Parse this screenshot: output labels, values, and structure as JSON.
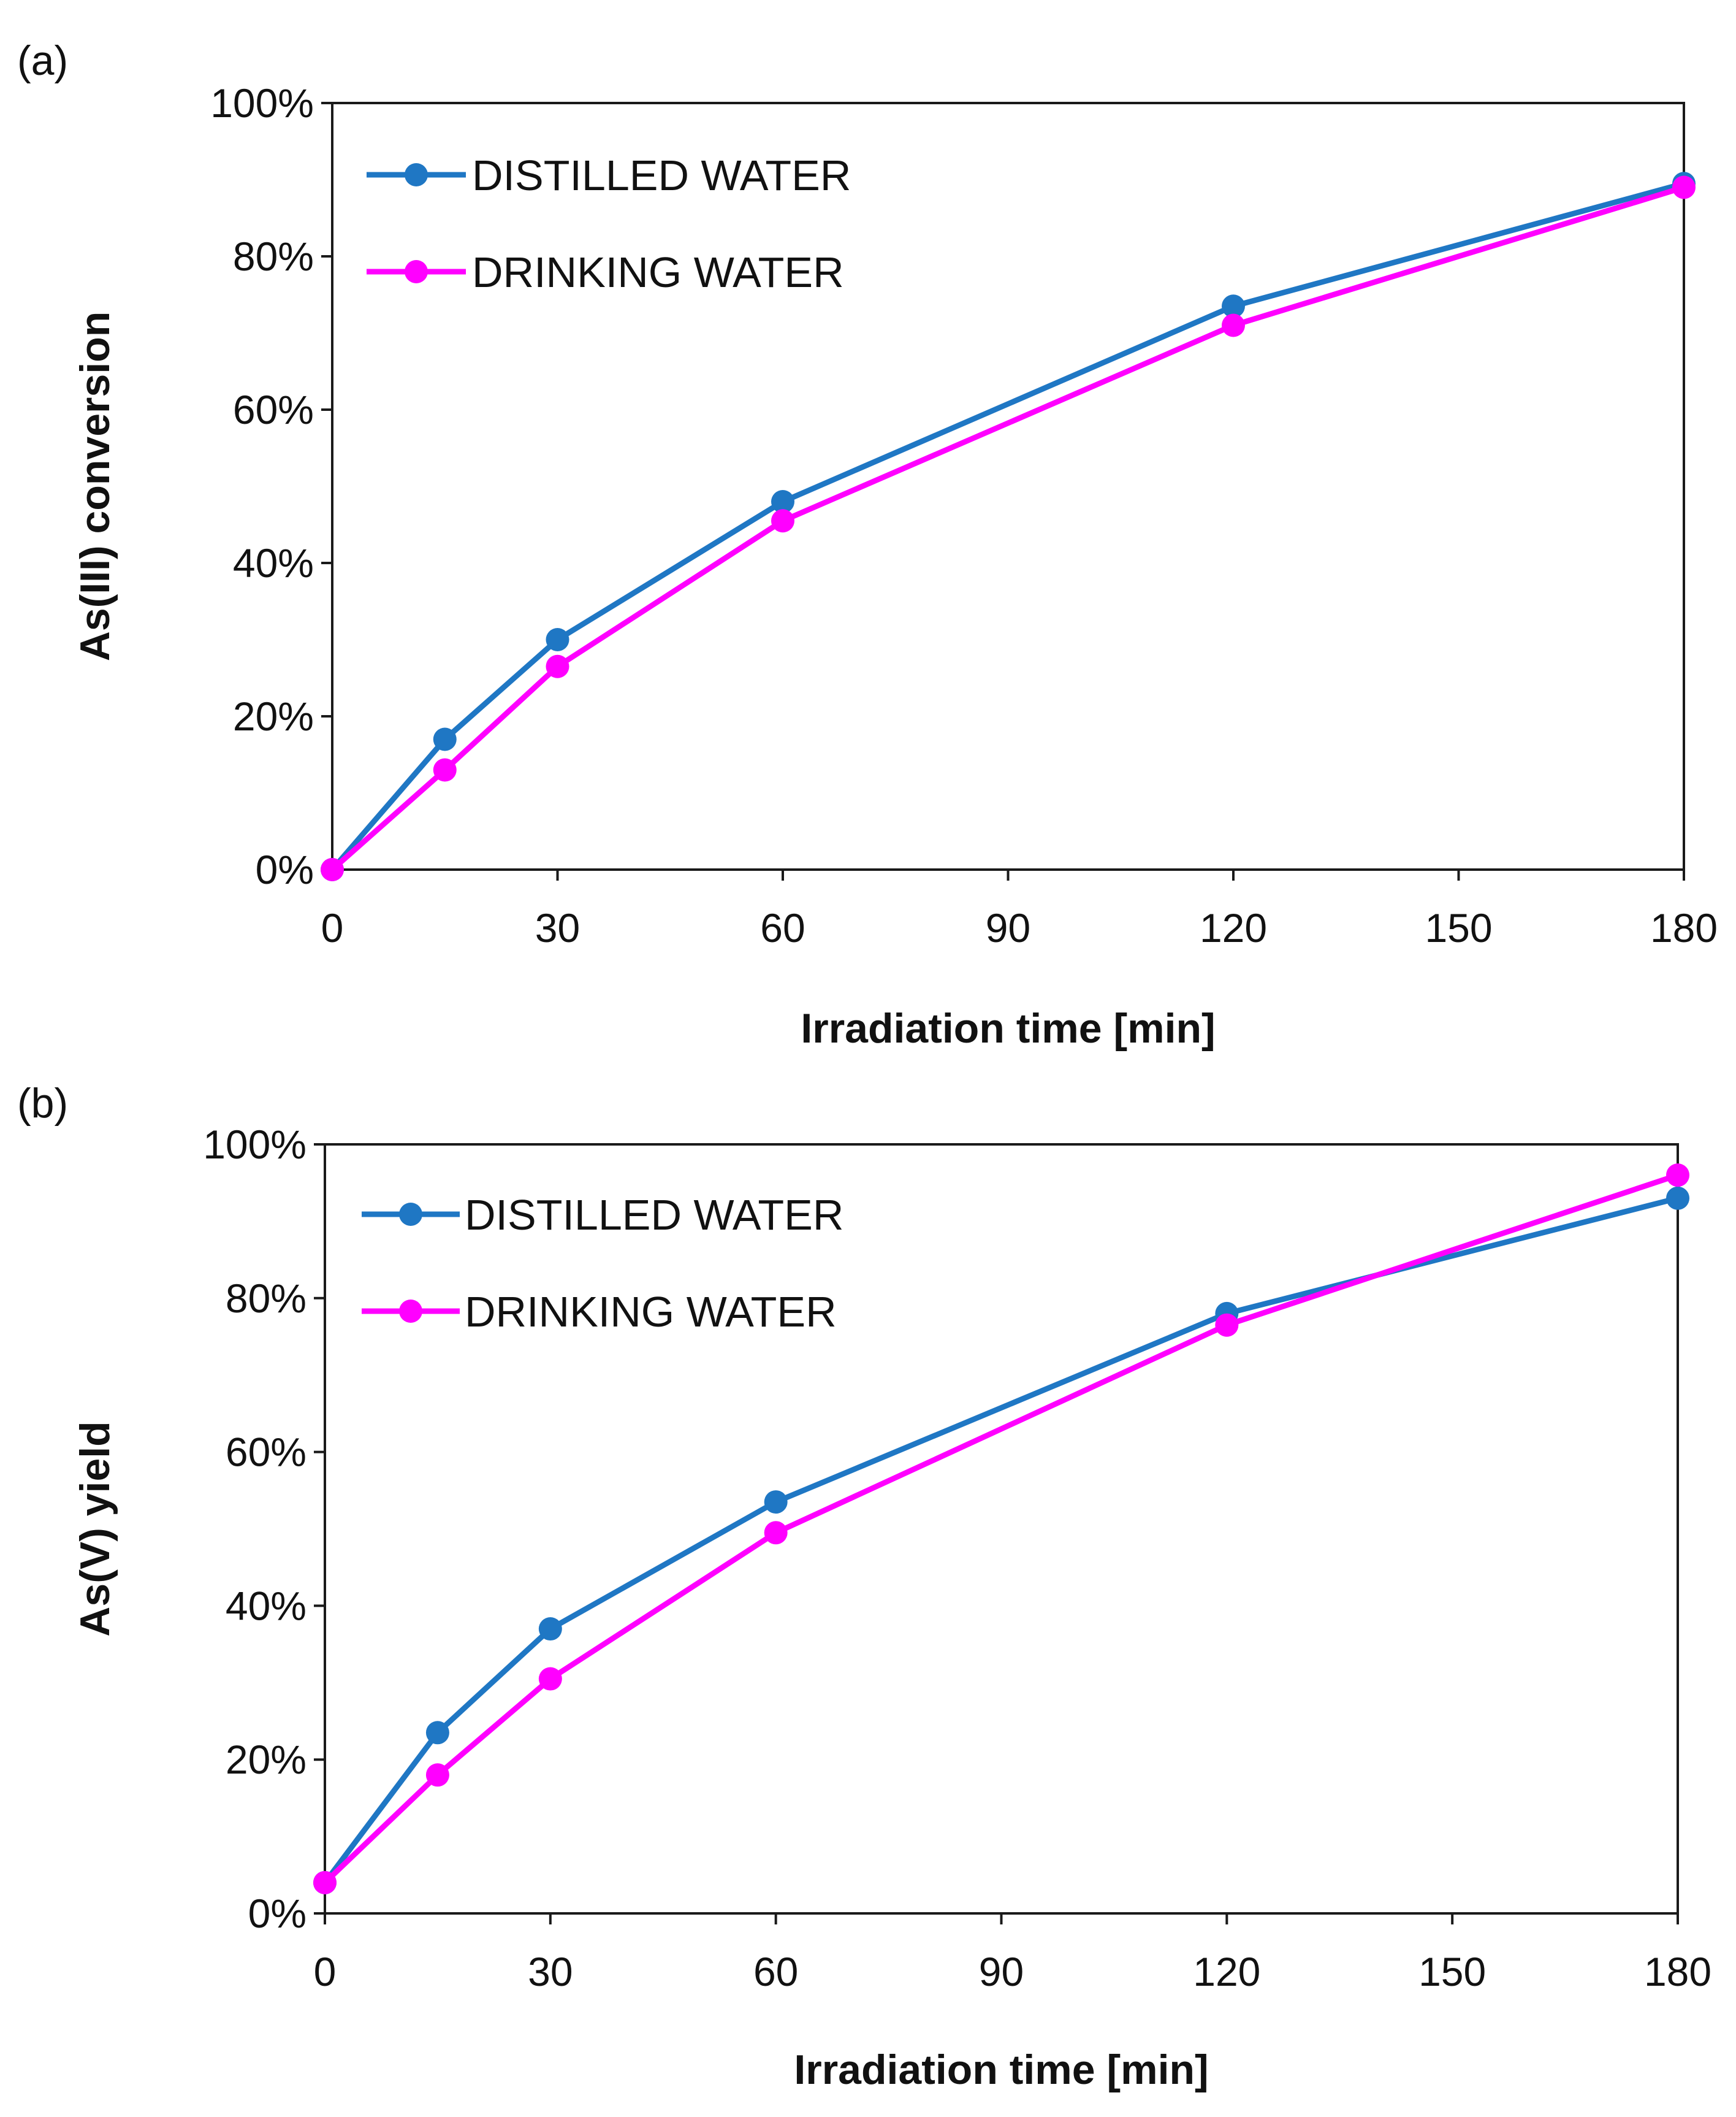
{
  "chart_data": [
    {
      "type": "line",
      "panel_label": "(a)",
      "title": "",
      "xlabel": "Irradiation time [min]",
      "ylabel": "As(III) conversion",
      "xlim": [
        0,
        180
      ],
      "ylim": [
        0,
        100
      ],
      "x_ticks": [
        0,
        30,
        60,
        90,
        120,
        150,
        180
      ],
      "x_tick_labels": [
        "0",
        "30",
        "60",
        "90",
        "120",
        "150",
        "180"
      ],
      "y_ticks": [
        0,
        20,
        40,
        60,
        80,
        100
      ],
      "y_tick_labels": [
        "0%",
        "20%",
        "40%",
        "60%",
        "80%",
        "100%"
      ],
      "grid": false,
      "legend_position": "top-left",
      "x": [
        0,
        15,
        30,
        60,
        120,
        180
      ],
      "series": [
        {
          "name": "DISTILLED WATER",
          "color": "#1f77c4",
          "values": [
            0,
            17,
            30,
            48,
            73.5,
            89.5
          ]
        },
        {
          "name": "DRINKING WATER",
          "color": "#ff00ff",
          "values": [
            0,
            13,
            26.5,
            45.5,
            71,
            89
          ]
        }
      ]
    },
    {
      "type": "line",
      "panel_label": "(b)",
      "title": "",
      "xlabel": "Irradiation time [min]",
      "ylabel": "As(V) yield",
      "xlim": [
        0,
        180
      ],
      "ylim": [
        0,
        100
      ],
      "x_ticks": [
        0,
        30,
        60,
        90,
        120,
        150,
        180
      ],
      "x_tick_labels": [
        "0",
        "30",
        "60",
        "90",
        "120",
        "150",
        "180"
      ],
      "y_ticks": [
        0,
        20,
        40,
        60,
        80,
        100
      ],
      "y_tick_labels": [
        "0%",
        "20%",
        "40%",
        "60%",
        "80%",
        "100%"
      ],
      "grid": false,
      "legend_position": "top-left",
      "x": [
        0,
        15,
        30,
        60,
        120,
        180
      ],
      "series": [
        {
          "name": "DISTILLED WATER",
          "color": "#1f77c4",
          "values": [
            4,
            23.5,
            37,
            53.5,
            78,
            93
          ]
        },
        {
          "name": "DRINKING WATER",
          "color": "#ff00ff",
          "values": [
            4,
            18,
            30.5,
            49.5,
            76.5,
            96
          ]
        }
      ]
    }
  ]
}
